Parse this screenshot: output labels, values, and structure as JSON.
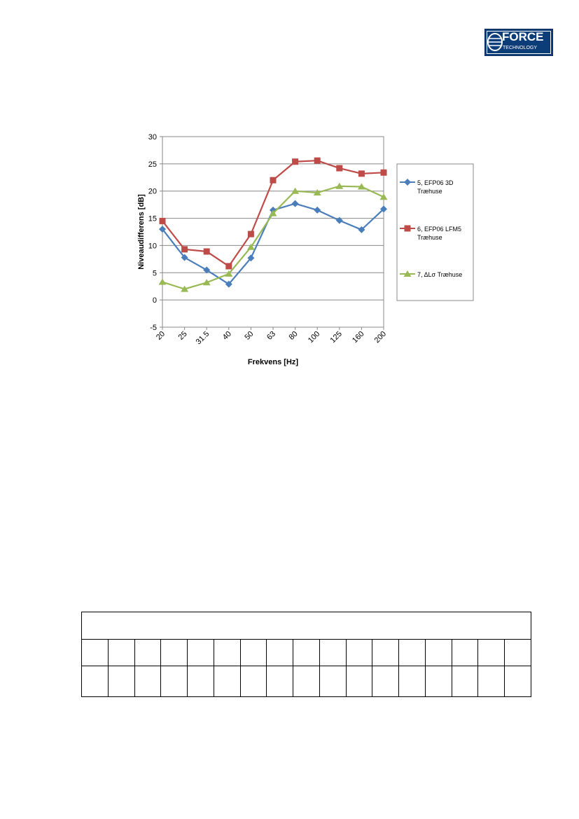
{
  "logo": {
    "word": "FORCE",
    "sub": "TECHNOLOGY"
  },
  "chart_data": {
    "type": "line",
    "title": "",
    "xlabel": "Frekvens [Hz]",
    "ylabel": "Niveaudifferens [dB]",
    "ylim": [
      -5,
      30
    ],
    "yticks": [
      "-5",
      "0",
      "5",
      "10",
      "15",
      "20",
      "25",
      "30"
    ],
    "grid": true,
    "legend_position": "right",
    "categories": [
      "20",
      "25",
      "31.5",
      "40",
      "50",
      "63",
      "80",
      "100",
      "125",
      "160",
      "200"
    ],
    "series": [
      {
        "name": "5, EFP06 3D\nTræhuse",
        "color": "#4a7ebb",
        "marker": "diamond",
        "values": [
          13.0,
          7.8,
          5.5,
          2.9,
          7.7,
          16.5,
          17.7,
          16.5,
          14.6,
          12.9,
          16.7
        ]
      },
      {
        "name": "6, EFP06 LFM5\nTræhuse",
        "color": "#be4b48",
        "marker": "square",
        "values": [
          14.5,
          9.3,
          8.9,
          6.2,
          12.1,
          22.0,
          25.4,
          25.6,
          24.2,
          23.2,
          23.4
        ]
      },
      {
        "name": "7, ΔLσ  Træhuse",
        "color": "#98b954",
        "marker": "triangle",
        "values": [
          3.3,
          2.0,
          3.2,
          4.8,
          9.7,
          15.9,
          20.0,
          19.7,
          20.9,
          20.8,
          18.9
        ]
      }
    ]
  },
  "table": {
    "columns": 17
  }
}
